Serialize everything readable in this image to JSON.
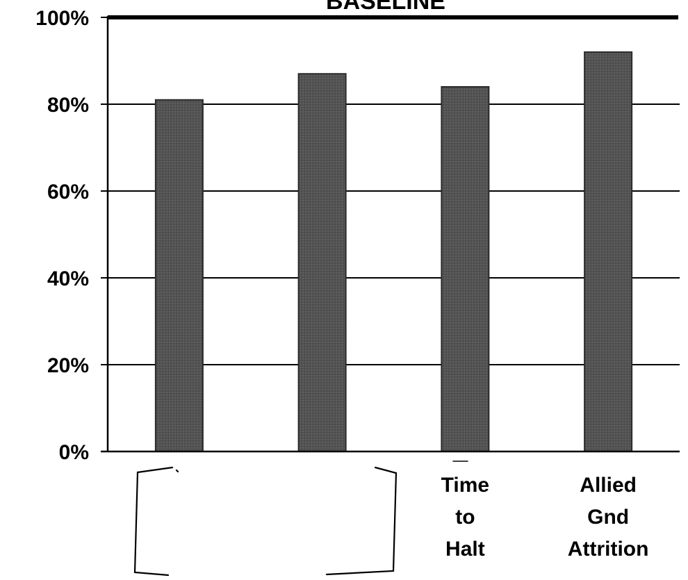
{
  "chart_data": {
    "type": "bar",
    "title": "BASELINE",
    "xlabel": "",
    "ylabel": "",
    "ylim": [
      0,
      100
    ],
    "yticks": [
      "0%",
      "20%",
      "40%",
      "60%",
      "80%",
      "100%"
    ],
    "categories": [
      "",
      "",
      "Time to Halt",
      "Allied Gnd Attrition"
    ],
    "category_lines": [
      [],
      [],
      [
        "Time",
        "to",
        "Halt"
      ],
      [
        "Allied",
        "Gnd",
        "Attrition"
      ]
    ],
    "values": [
      81,
      87,
      84,
      92
    ],
    "grid": true,
    "legend": "none",
    "colors": {
      "bar": "#505050",
      "bar_edge": "#2a2a2a",
      "grid": "#000000"
    }
  }
}
